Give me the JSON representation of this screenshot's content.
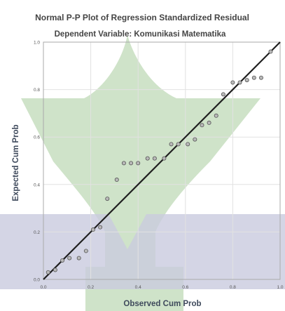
{
  "chart_data": {
    "type": "scatter",
    "title": "Normal P-P Plot of Regression Standardized Residual",
    "subtitle": "Dependent Variable: Komunikasi Matematika",
    "xlabel": "Observed Cum Prob",
    "ylabel": "Expected Cum Prob",
    "xlim": [
      0.0,
      1.0
    ],
    "ylim": [
      0.0,
      1.0
    ],
    "x_ticks": [
      "0.0",
      "0.2",
      "0.4",
      "0.6",
      "0.8",
      "1.0"
    ],
    "y_ticks": [
      "0.0",
      "0.2",
      "0.4",
      "0.6",
      "0.8",
      "1.0"
    ],
    "grid": true,
    "reference_line": {
      "from": [
        0,
        0
      ],
      "to": [
        1,
        1
      ]
    },
    "points": [
      {
        "x": 0.02,
        "y": 0.03
      },
      {
        "x": 0.05,
        "y": 0.04
      },
      {
        "x": 0.08,
        "y": 0.08
      },
      {
        "x": 0.11,
        "y": 0.09
      },
      {
        "x": 0.15,
        "y": 0.09
      },
      {
        "x": 0.18,
        "y": 0.12
      },
      {
        "x": 0.21,
        "y": 0.21
      },
      {
        "x": 0.24,
        "y": 0.22
      },
      {
        "x": 0.27,
        "y": 0.34
      },
      {
        "x": 0.31,
        "y": 0.42
      },
      {
        "x": 0.34,
        "y": 0.49
      },
      {
        "x": 0.37,
        "y": 0.49
      },
      {
        "x": 0.4,
        "y": 0.49
      },
      {
        "x": 0.44,
        "y": 0.51
      },
      {
        "x": 0.47,
        "y": 0.51
      },
      {
        "x": 0.51,
        "y": 0.51
      },
      {
        "x": 0.54,
        "y": 0.57
      },
      {
        "x": 0.57,
        "y": 0.57
      },
      {
        "x": 0.61,
        "y": 0.57
      },
      {
        "x": 0.64,
        "y": 0.59
      },
      {
        "x": 0.67,
        "y": 0.65
      },
      {
        "x": 0.7,
        "y": 0.66
      },
      {
        "x": 0.73,
        "y": 0.69
      },
      {
        "x": 0.76,
        "y": 0.78
      },
      {
        "x": 0.8,
        "y": 0.83
      },
      {
        "x": 0.83,
        "y": 0.83
      },
      {
        "x": 0.86,
        "y": 0.84
      },
      {
        "x": 0.89,
        "y": 0.85
      },
      {
        "x": 0.92,
        "y": 0.85
      },
      {
        "x": 0.96,
        "y": 0.96
      }
    ]
  },
  "colors": {
    "watermark_green": "#cfe3c9",
    "watermark_blue": "#c9cbdf",
    "reference_line": "#1f1f1f",
    "point_fill": "#b9b9b9",
    "point_stroke": "#555555",
    "grid": "#e2e2e2"
  }
}
